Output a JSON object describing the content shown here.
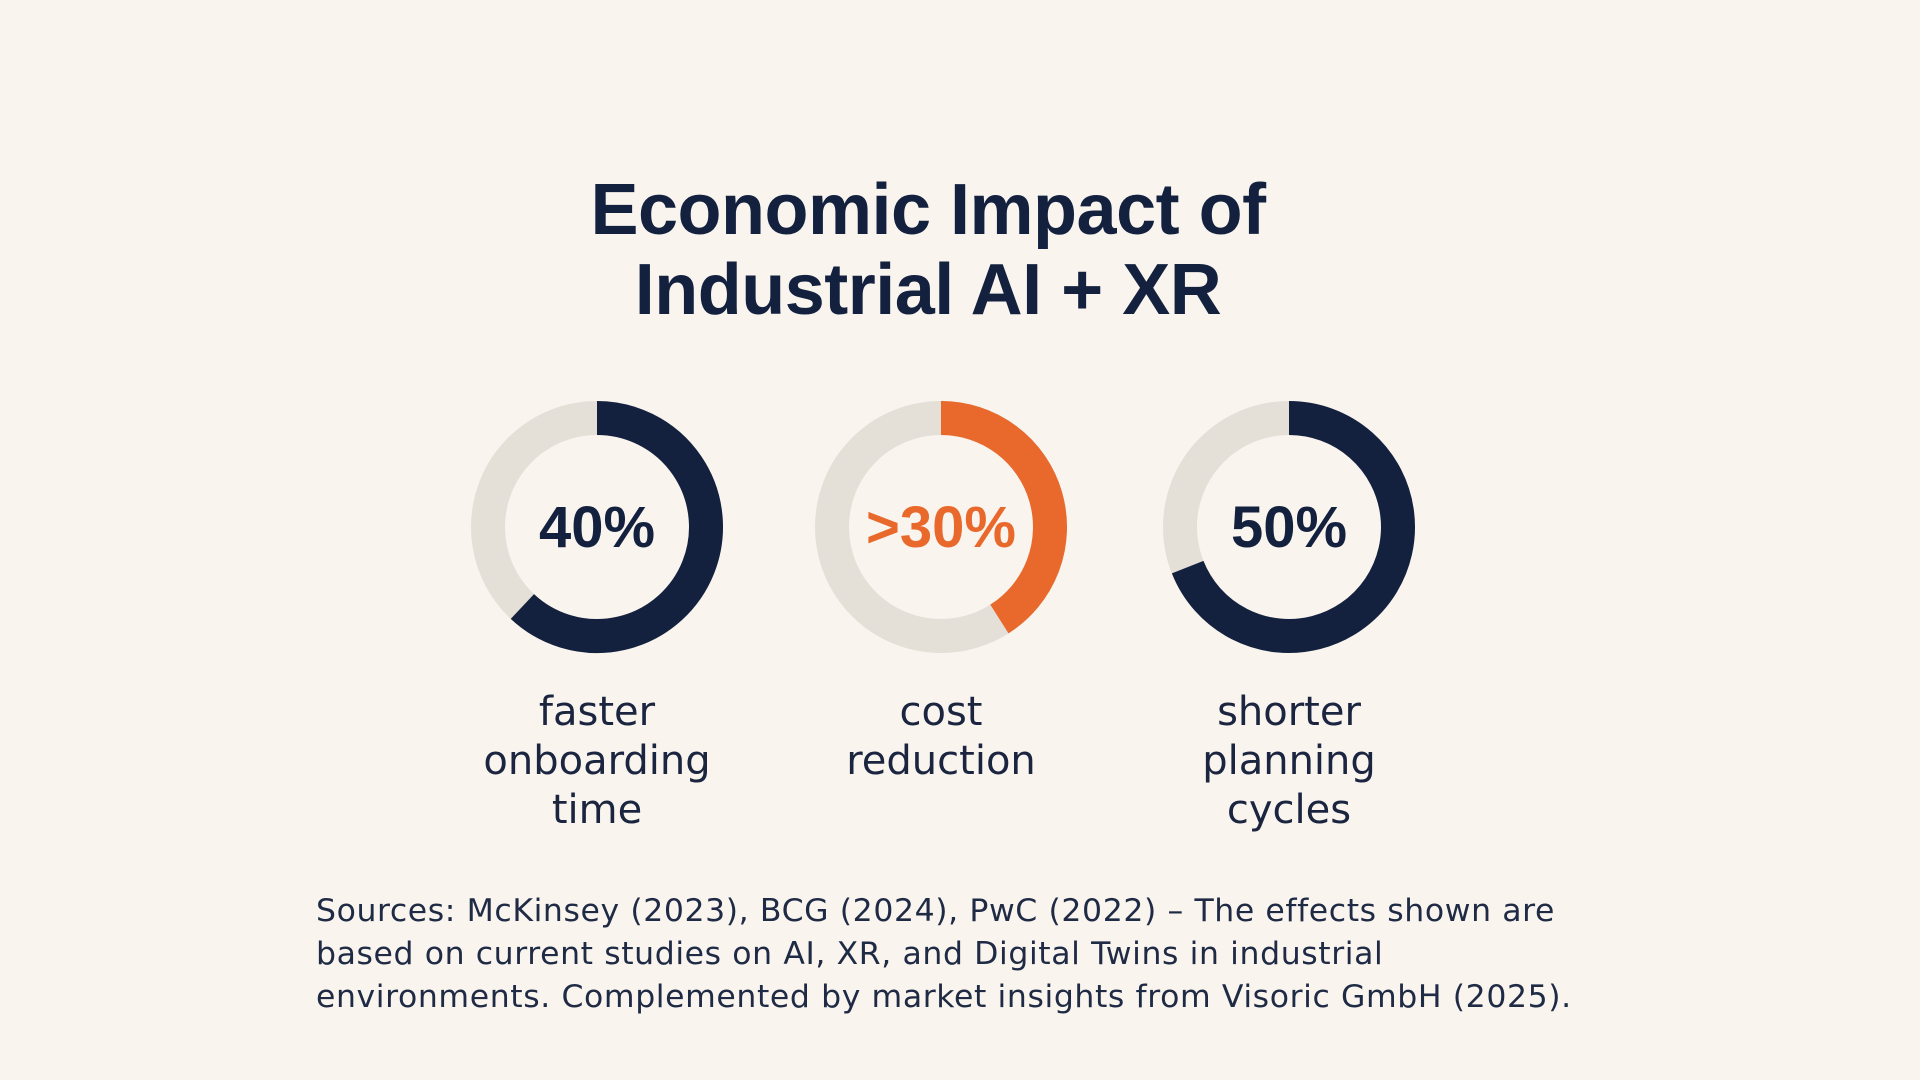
{
  "title": {
    "line1": "Economic Impact of",
    "line2": "Industrial AI + XR"
  },
  "colors": {
    "background": "#f9f4ee",
    "navy": "#13213f",
    "orange": "#e8692b",
    "track": "#e4dfd7"
  },
  "chart_data": {
    "type": "donut",
    "title": "Economic Impact of Industrial AI + XR",
    "items": [
      {
        "value_label": "40%",
        "value": 40,
        "fill_fraction": 0.62,
        "color": "#13213f",
        "caption": [
          "faster",
          "onboarding",
          "time"
        ]
      },
      {
        "value_label": ">30%",
        "value": 30,
        "fill_fraction": 0.41,
        "color": "#e8692b",
        "caption": [
          "cost",
          "reduction"
        ]
      },
      {
        "value_label": "50%",
        "value": 50,
        "fill_fraction": 0.69,
        "color": "#13213f",
        "caption": [
          "shorter",
          "planning",
          "cycles"
        ]
      }
    ]
  },
  "sources": {
    "line1": "Sources: McKinsey (2023), BCG (2024), PwC (2022) – The effects shown are",
    "line2": "based on current studies on AI, XR, and Digital Twins in industrial",
    "line3": "environments. Complemented by market insights from Visoric GmbH (2025)."
  }
}
